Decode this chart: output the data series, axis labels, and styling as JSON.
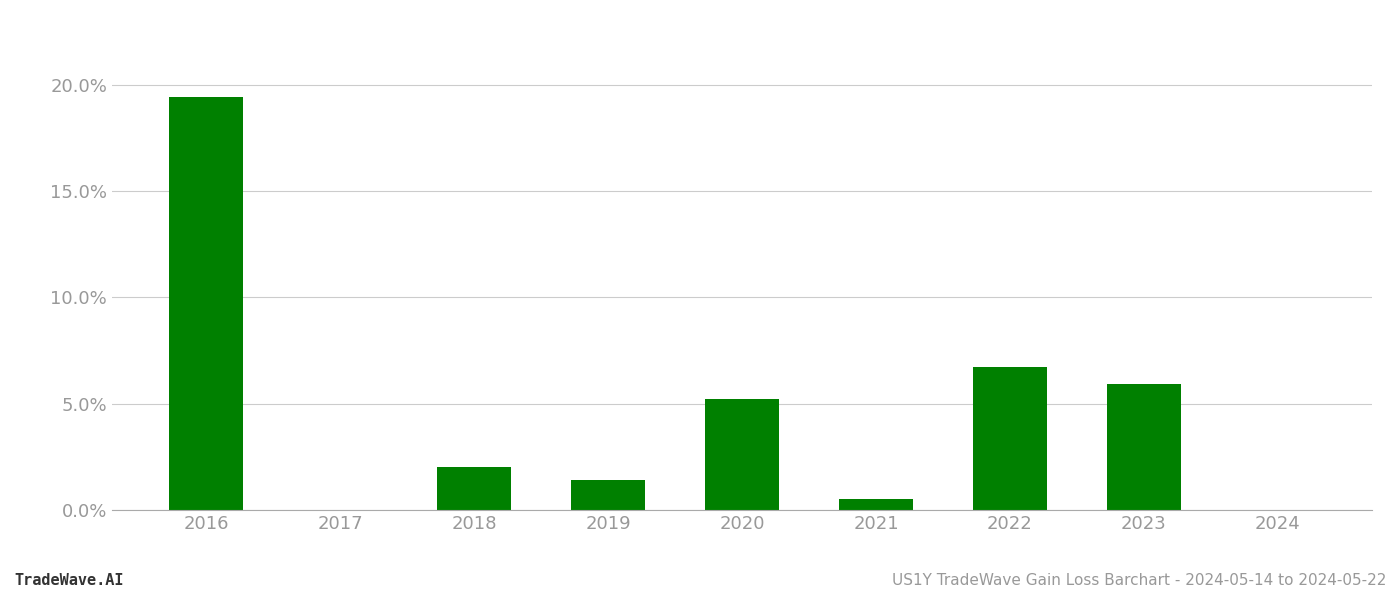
{
  "years": [
    "2016",
    "2017",
    "2018",
    "2019",
    "2020",
    "2021",
    "2022",
    "2023",
    "2024"
  ],
  "values": [
    0.194,
    0.0,
    0.02,
    0.014,
    0.052,
    0.005,
    0.067,
    0.059,
    0.0
  ],
  "bar_color": "#008000",
  "background_color": "#ffffff",
  "grid_color": "#cccccc",
  "tick_label_color": "#999999",
  "footer_left": "TradeWave.AI",
  "footer_right": "US1Y TradeWave Gain Loss Barchart - 2024-05-14 to 2024-05-22",
  "ylim": [
    0.0,
    0.22
  ],
  "yticks": [
    0.0,
    0.05,
    0.1,
    0.15,
    0.2
  ],
  "ytick_labels": [
    "0.0%",
    "5.0%",
    "10.0%",
    "15.0%",
    "20.0%"
  ],
  "footer_fontsize": 11,
  "tick_fontsize": 13,
  "bar_width": 0.55
}
